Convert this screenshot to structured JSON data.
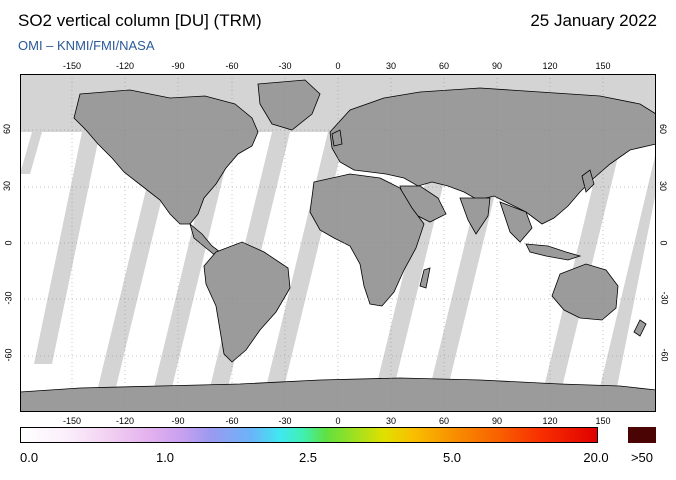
{
  "header": {
    "title": "SO2 vertical column [DU] (TRM)",
    "date": "25 January 2022",
    "credit": "OMI  –  KNMI/FMI/NASA"
  },
  "axes": {
    "lon_ticks": [
      "-150",
      "-120",
      "-90",
      "-60",
      "-30",
      "0",
      "30",
      "60",
      "90",
      "120",
      "150"
    ],
    "lat_ticks": [
      "60",
      "30",
      "0",
      "-30",
      "-60"
    ]
  },
  "colorbar": {
    "labels": [
      "0.0",
      "1.0",
      "2.5",
      "5.0",
      "20.0"
    ],
    "over_label": ">50"
  },
  "colors": {
    "land": "#9b9b9b",
    "no_data": "#d4d4d4",
    "ocean_data": "#ffffff",
    "over_value": "#4a0404"
  }
}
